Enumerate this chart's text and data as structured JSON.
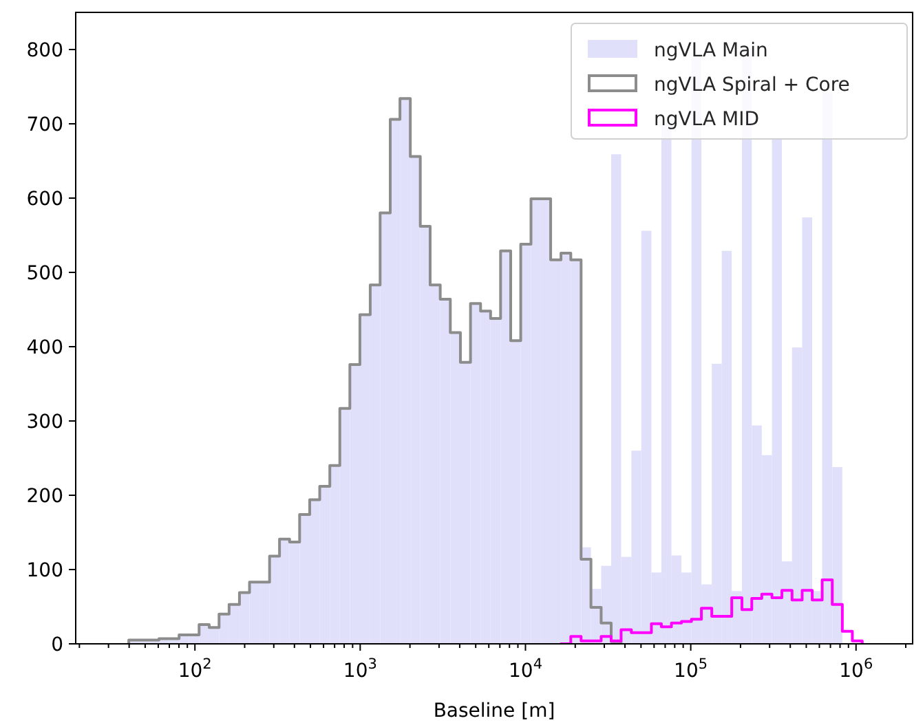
{
  "chart_data": {
    "type": "histogram",
    "xlabel": "Baseline [m]",
    "log": "x",
    "grid": false,
    "legend": "top right",
    "xlim": [
      19,
      2200000
    ],
    "ylim": [
      0,
      850
    ],
    "yticks": [
      0,
      100,
      200,
      300,
      400,
      500,
      600,
      700,
      800
    ],
    "xticks": [
      {
        "value": 20,
        "label": null
      },
      {
        "value": 30,
        "label": null
      },
      {
        "value": 40,
        "label": null
      },
      {
        "value": 50,
        "label": null
      },
      {
        "value": 60,
        "label": null
      },
      {
        "value": 70,
        "label": null
      },
      {
        "value": 80,
        "label": null
      },
      {
        "value": 90,
        "label": null
      },
      {
        "value": 100,
        "label": "10$^{2}$"
      },
      {
        "value": 200,
        "label": null
      },
      {
        "value": 300,
        "label": null
      },
      {
        "value": 400,
        "label": null
      },
      {
        "value": 500,
        "label": null
      },
      {
        "value": 600,
        "label": null
      },
      {
        "value": 700,
        "label": null
      },
      {
        "value": 800,
        "label": null
      },
      {
        "value": 900,
        "label": null
      },
      {
        "value": 1000,
        "label": "10$^{3}$"
      },
      {
        "value": 2000,
        "label": null
      },
      {
        "value": 3000,
        "label": null
      },
      {
        "value": 4000,
        "label": null
      },
      {
        "value": 5000,
        "label": null
      },
      {
        "value": 6000,
        "label": null
      },
      {
        "value": 7000,
        "label": null
      },
      {
        "value": 8000,
        "label": null
      },
      {
        "value": 9000,
        "label": null
      },
      {
        "value": 10000,
        "label": "10$^{4}$"
      },
      {
        "value": 20000,
        "label": null
      },
      {
        "value": 30000,
        "label": null
      },
      {
        "value": 40000,
        "label": null
      },
      {
        "value": 50000,
        "label": null
      },
      {
        "value": 60000,
        "label": null
      },
      {
        "value": 70000,
        "label": null
      },
      {
        "value": 80000,
        "label": null
      },
      {
        "value": 90000,
        "label": null
      },
      {
        "value": 100000,
        "label": "10$^{5}$"
      },
      {
        "value": 200000,
        "label": null
      },
      {
        "value": 300000,
        "label": null
      },
      {
        "value": 400000,
        "label": null
      },
      {
        "value": 500000,
        "label": null
      },
      {
        "value": 600000,
        "label": null
      },
      {
        "value": 700000,
        "label": null
      },
      {
        "value": 800000,
        "label": null
      },
      {
        "value": 900000,
        "label": null
      },
      {
        "value": 1000000,
        "label": "10$^{6}$"
      },
      {
        "value": 2000000,
        "label": null
      }
    ],
    "bins": [
      39.8,
      45.8,
      52.7,
      60.6,
      69.7,
      80.2,
      92.2,
      106,
      122,
      140,
      161,
      186,
      214,
      246,
      283,
      325,
      374,
      430,
      495,
      569,
      655,
      753,
      866,
      996,
      1150,
      1320,
      1520,
      1740,
      2010,
      2310,
      2650,
      3050,
      3510,
      4040,
      4650,
      5350,
      6150,
      7070,
      8140,
      9360,
      10800,
      12400,
      14200,
      16400,
      18800,
      21700,
      24900,
      28700,
      33000,
      37900,
      43700,
      50200,
      57800,
      66400,
      76400,
      87900,
      101000,
      116000,
      134000,
      154000,
      177000,
      204000,
      234000,
      269000,
      310000,
      356000,
      410000,
      472000,
      543000,
      624000,
      718000,
      826000
    ],
    "series": [
      {
        "name": "ngVLA Main",
        "color": "#e0e0fb",
        "values": [
          5,
          5,
          5,
          7,
          7,
          12,
          12,
          26,
          22,
          40,
          53,
          69,
          83,
          83,
          118,
          141,
          137,
          174,
          194,
          212,
          240,
          317,
          376,
          443,
          483,
          580,
          706,
          734,
          656,
          562,
          483,
          464,
          419,
          379,
          458,
          448,
          438,
          529,
          408,
          538,
          599,
          599,
          517,
          526,
          517,
          130,
          74,
          105,
          659,
          117,
          260,
          556,
          96,
          702,
          119,
          96,
          789,
          80,
          377,
          529,
          71,
          801,
          294,
          254,
          679,
          111,
          399,
          574,
          71,
          742,
          238
        ]
      },
      {
        "name": "ngVLA Spiral + Core",
        "type": "step",
        "color": "#8c8c8c",
        "x": [
          39.8,
          45.8,
          52.7,
          60.6,
          69.7,
          80.2,
          92.2,
          106,
          122,
          140,
          161,
          186,
          214,
          246,
          283,
          325,
          374,
          430,
          495,
          569,
          655,
          753,
          866,
          996,
          1150,
          1320,
          1520,
          1740,
          2010,
          2310,
          2650,
          3050,
          3510,
          4040,
          4650,
          5350,
          6150,
          7070,
          8140,
          9360,
          10800,
          12400,
          14200,
          16400,
          18800,
          21700,
          24900,
          28700,
          33000,
          37900
        ],
        "values": [
          5,
          5,
          5,
          7,
          7,
          12,
          12,
          26,
          22,
          40,
          53,
          69,
          83,
          83,
          118,
          141,
          137,
          174,
          194,
          212,
          240,
          317,
          376,
          443,
          483,
          580,
          706,
          734,
          656,
          562,
          483,
          464,
          419,
          379,
          458,
          448,
          438,
          529,
          408,
          538,
          599,
          599,
          517,
          526,
          517,
          114,
          49,
          28,
          3,
          0
        ]
      },
      {
        "name": "ngVLA MID",
        "type": "step",
        "color": "#ff00ff",
        "x": [
          16400,
          18800,
          21700,
          24900,
          28700,
          33000,
          37900,
          43700,
          50200,
          57800,
          66400,
          76400,
          87900,
          101000,
          116000,
          134000,
          154000,
          177000,
          204000,
          234000,
          269000,
          310000,
          356000,
          410000,
          472000,
          543000,
          624000,
          718000,
          826000,
          950000,
          1090000
        ],
        "values": [
          0,
          10,
          4,
          4,
          10,
          4,
          19,
          15,
          15,
          27,
          23,
          28,
          30,
          33,
          48,
          37,
          37,
          62,
          46,
          61,
          67,
          62,
          72,
          59,
          72,
          59,
          86,
          53,
          17,
          4,
          0
        ]
      }
    ]
  }
}
